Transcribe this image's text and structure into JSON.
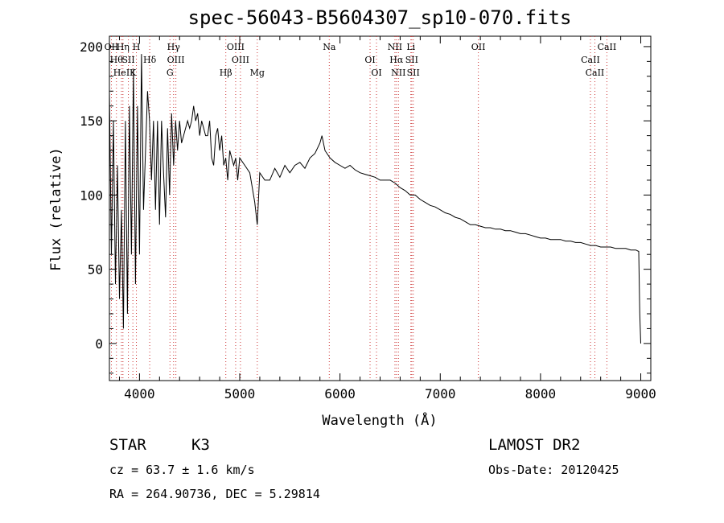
{
  "chart_data": {
    "type": "line",
    "title": "spec-56043-B5604307_sp10-070.fits",
    "xlabel": "Wavelength (Å)",
    "ylabel": "Flux (relative)",
    "xlim": [
      3700,
      9100
    ],
    "ylim": [
      -25,
      207
    ],
    "x_ticks": [
      4000,
      5000,
      6000,
      7000,
      8000,
      9000
    ],
    "y_ticks": [
      0,
      50,
      100,
      150,
      200
    ],
    "grid": false,
    "series": [
      {
        "x": [
          3700,
          3720,
          3740,
          3760,
          3780,
          3800,
          3820,
          3840,
          3860,
          3880,
          3900,
          3920,
          3940,
          3960,
          3980,
          4000,
          4020,
          4040,
          4060,
          4080,
          4100,
          4120,
          4140,
          4160,
          4180,
          4200,
          4220,
          4240,
          4260,
          4280,
          4300,
          4320,
          4340,
          4360,
          4380,
          4400,
          4420,
          4440,
          4460,
          4480,
          4500,
          4520,
          4540,
          4560,
          4580,
          4600,
          4620,
          4640,
          4660,
          4680,
          4700,
          4720,
          4740,
          4760,
          4780,
          4800,
          4820,
          4840,
          4860,
          4880,
          4900,
          4920,
          4940,
          4960,
          4980,
          5000,
          5050,
          5100,
          5150,
          5175,
          5200,
          5250,
          5300,
          5350,
          5400,
          5450,
          5500,
          5550,
          5600,
          5650,
          5700,
          5750,
          5800,
          5820,
          5850,
          5900,
          5950,
          6000,
          6050,
          6100,
          6150,
          6200,
          6250,
          6300,
          6350,
          6400,
          6450,
          6500,
          6550,
          6600,
          6650,
          6700,
          6750,
          6800,
          6850,
          6900,
          6950,
          7000,
          7050,
          7100,
          7150,
          7200,
          7250,
          7300,
          7350,
          7400,
          7450,
          7500,
          7550,
          7600,
          7650,
          7700,
          7750,
          7800,
          7850,
          7900,
          7950,
          8000,
          8050,
          8100,
          8150,
          8200,
          8250,
          8300,
          8350,
          8400,
          8450,
          8500,
          8550,
          8600,
          8650,
          8700,
          8750,
          8800,
          8850,
          8900,
          8950,
          8980,
          8990,
          9000
        ],
        "y": [
          170,
          60,
          150,
          40,
          120,
          30,
          90,
          10,
          150,
          20,
          160,
          60,
          185,
          40,
          160,
          60,
          195,
          90,
          130,
          170,
          150,
          110,
          150,
          90,
          150,
          80,
          150,
          115,
          85,
          145,
          100,
          155,
          120,
          150,
          130,
          150,
          135,
          140,
          145,
          150,
          145,
          150,
          160,
          150,
          155,
          140,
          150,
          145,
          140,
          140,
          150,
          125,
          120,
          140,
          145,
          130,
          140,
          120,
          125,
          110,
          130,
          125,
          120,
          125,
          110,
          125,
          120,
          115,
          95,
          80,
          115,
          110,
          110,
          118,
          112,
          120,
          115,
          120,
          122,
          118,
          125,
          128,
          135,
          140,
          130,
          125,
          122,
          120,
          118,
          120,
          117,
          115,
          114,
          113,
          112,
          110,
          110,
          110,
          108,
          105,
          103,
          100,
          100,
          97,
          95,
          93,
          92,
          90,
          88,
          87,
          85,
          84,
          82,
          80,
          80,
          79,
          78,
          78,
          77,
          77,
          76,
          76,
          75,
          74,
          74,
          73,
          72,
          71,
          71,
          70,
          70,
          70,
          69,
          69,
          68,
          68,
          67,
          66,
          66,
          65,
          65,
          65,
          64,
          64,
          64,
          63,
          63,
          62,
          20,
          0
        ]
      }
    ],
    "line_labels": [
      {
        "x": 3720,
        "label": "OII"
      },
      {
        "x": 3770,
        "label": "Hθ"
      },
      {
        "x": 3820,
        "label": "HeI"
      },
      {
        "x": 3835,
        "label": "Hη"
      },
      {
        "x": 3889,
        "label": "SII"
      },
      {
        "x": 3934,
        "label": "K"
      },
      {
        "x": 3969,
        "label": "H"
      },
      {
        "x": 4102,
        "label": "Hδ"
      },
      {
        "x": 4304,
        "label": "G"
      },
      {
        "x": 4340,
        "label": "Hγ"
      },
      {
        "x": 4363,
        "label": "OIII"
      },
      {
        "x": 4861,
        "label": "Hβ"
      },
      {
        "x": 4959,
        "label": "OIII"
      },
      {
        "x": 5007,
        "label": "OIII"
      },
      {
        "x": 5175,
        "label": "Mg"
      },
      {
        "x": 5893,
        "label": "Na"
      },
      {
        "x": 6300,
        "label": "OI"
      },
      {
        "x": 6364,
        "label": "OI"
      },
      {
        "x": 6548,
        "label": "NII"
      },
      {
        "x": 6563,
        "label": "Hα"
      },
      {
        "x": 6583,
        "label": "NII"
      },
      {
        "x": 6707,
        "label": "Li"
      },
      {
        "x": 6716,
        "label": "SII"
      },
      {
        "x": 6731,
        "label": "SII"
      },
      {
        "x": 7380,
        "label": "OII"
      },
      {
        "x": 8498,
        "label": "CaII"
      },
      {
        "x": 8542,
        "label": "CaII"
      },
      {
        "x": 8662,
        "label": "CaII"
      }
    ]
  },
  "info": {
    "object_class": "STAR",
    "subclass": "K3",
    "survey": "LAMOST DR2",
    "redshift": "cz = 63.7 ± 1.6 km/s",
    "obs_date": "Obs-Date: 20120425",
    "coords": "RA = 264.90736, DEC =   5.29814"
  }
}
